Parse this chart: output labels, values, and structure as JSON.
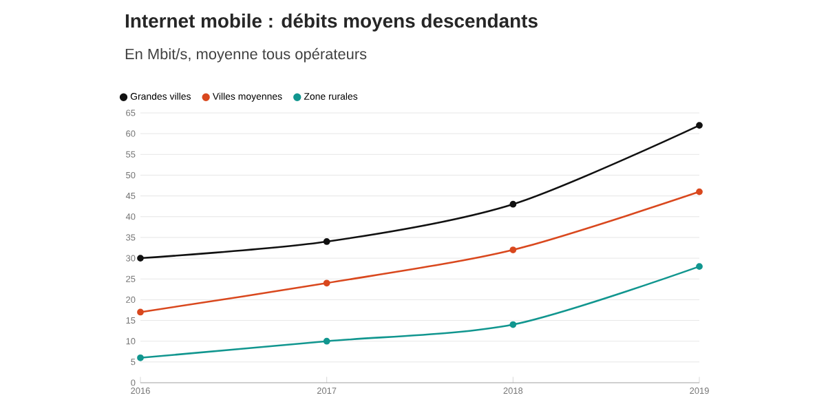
{
  "chart_data": {
    "type": "line",
    "title": "Internet mobile : débits moyens descendants",
    "subtitle": "En Mbit/s, moyenne tous opérateurs",
    "x": [
      2016,
      2017,
      2018,
      2019
    ],
    "series": [
      {
        "name": "Grandes villes",
        "color": "#111111",
        "values": [
          30,
          34,
          43,
          62
        ]
      },
      {
        "name": "Villes moyennes",
        "color": "#d9481e",
        "values": [
          17,
          24,
          32,
          46
        ]
      },
      {
        "name": "Zone rurales",
        "color": "#11968f",
        "values": [
          6,
          10,
          14,
          28
        ]
      }
    ],
    "xlim": [
      2016,
      2019
    ],
    "xticks": [
      2016,
      2017,
      2018,
      2019
    ],
    "ylim": [
      0,
      65
    ],
    "yticks": [
      0,
      5,
      10,
      15,
      20,
      25,
      30,
      35,
      40,
      45,
      50,
      55,
      60,
      65
    ],
    "grid": "y",
    "legend": "top left",
    "marker": "circle",
    "line_style": "solid"
  }
}
